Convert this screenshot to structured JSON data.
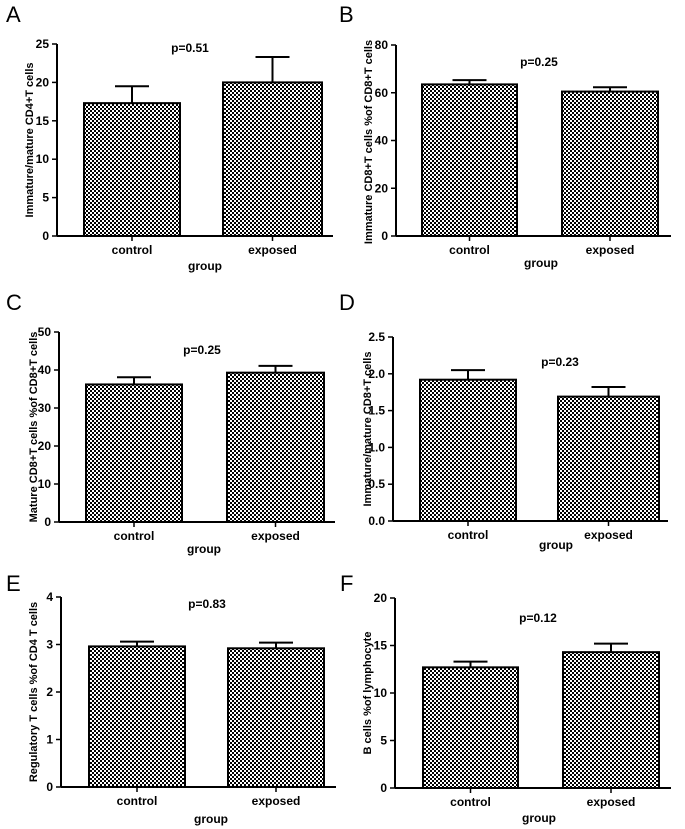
{
  "chart_data": [
    {
      "panel": "A",
      "type": "bar",
      "categories": [
        "control",
        "exposed"
      ],
      "values": [
        17.3,
        20.0
      ],
      "errors": [
        2.2,
        3.3
      ],
      "annotation": "p=0.51",
      "xlabel": "group",
      "ylabel": "Immature/mature CD4+T cells",
      "ylim": [
        0,
        25
      ],
      "yticks": [
        0,
        5,
        10,
        15,
        20,
        25
      ]
    },
    {
      "panel": "B",
      "type": "bar",
      "categories": [
        "control",
        "exposed"
      ],
      "values": [
        63.5,
        60.5
      ],
      "errors": [
        1.8,
        1.8
      ],
      "annotation": "p=0.25",
      "xlabel": "group",
      "ylabel": "Immature CD8+T cells %of CD8+T cells",
      "ylim": [
        0,
        80
      ],
      "yticks": [
        0,
        20,
        40,
        60,
        80
      ]
    },
    {
      "panel": "C",
      "type": "bar",
      "categories": [
        "control",
        "exposed"
      ],
      "values": [
        36.2,
        39.3
      ],
      "errors": [
        1.9,
        1.8
      ],
      "annotation": "p=0.25",
      "xlabel": "group",
      "ylabel": "Mature CD8+T cells %of CD8+T cells",
      "ylim": [
        0,
        50
      ],
      "yticks": [
        0,
        10,
        20,
        30,
        40,
        50
      ]
    },
    {
      "panel": "D",
      "type": "bar",
      "categories": [
        "control",
        "exposed"
      ],
      "values": [
        1.92,
        1.69
      ],
      "errors": [
        0.13,
        0.13
      ],
      "annotation": "p=0.23",
      "xlabel": "group",
      "ylabel": "Immature/mature CD8+T cells",
      "ylim": [
        0,
        2.5
      ],
      "yticks": [
        "0.0",
        "0.5",
        "1.0",
        "1.5",
        "2.0",
        "2.5"
      ]
    },
    {
      "panel": "E",
      "type": "bar",
      "categories": [
        "control",
        "exposed"
      ],
      "values": [
        2.96,
        2.92
      ],
      "errors": [
        0.1,
        0.12
      ],
      "annotation": "p=0.83",
      "xlabel": "group",
      "ylabel": "Regulatory T cells %of CD4 T cells",
      "ylim": [
        0,
        4
      ],
      "yticks": [
        0,
        1,
        2,
        3,
        4
      ]
    },
    {
      "panel": "F",
      "type": "bar",
      "categories": [
        "control",
        "exposed"
      ],
      "values": [
        12.7,
        14.3
      ],
      "errors": [
        0.6,
        0.9
      ],
      "annotation": "p=0.12",
      "xlabel": "group",
      "ylabel": "B cells %of lymphocyte",
      "ylim": [
        0,
        20
      ],
      "yticks": [
        0,
        5,
        10,
        15,
        20
      ]
    }
  ]
}
